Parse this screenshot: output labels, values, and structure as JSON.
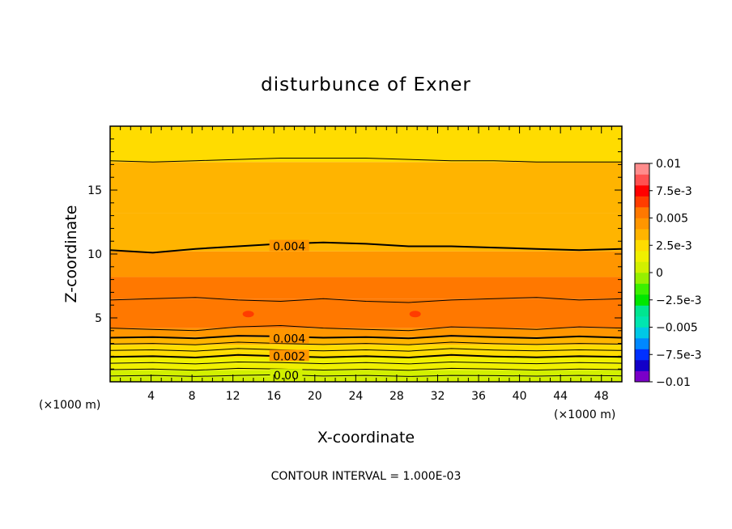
{
  "chart_data": {
    "type": "contour",
    "title": "disturbunce of Exner",
    "xlabel": "X-coordinate",
    "ylabel": "Z-coordinate",
    "x_unit": "(×1000 m)",
    "y_unit": "(×1000 m)",
    "xlim": [
      0,
      50
    ],
    "ylim": [
      0,
      20
    ],
    "x_ticks": [
      4,
      8,
      12,
      16,
      20,
      24,
      28,
      32,
      36,
      40,
      44,
      48
    ],
    "y_ticks": [
      5,
      10,
      15
    ],
    "contour_interval_text": "CONTOUR INTERVAL = 1.000E-03",
    "colorbar": {
      "range": [
        -0.01,
        0.01
      ],
      "labels": [
        {
          "value": 0.01,
          "text": "0.01"
        },
        {
          "value": 0.0075,
          "text": "7.5e-3"
        },
        {
          "value": 0.005,
          "text": "0.005"
        },
        {
          "value": 0.0025,
          "text": "2.5e-3"
        },
        {
          "value": 0,
          "text": "0"
        },
        {
          "value": -0.0025,
          "text": "−2.5e-3"
        },
        {
          "value": -0.005,
          "text": "−0.005"
        },
        {
          "value": -0.0075,
          "text": "−7.5e-3"
        },
        {
          "value": -0.01,
          "text": "−0.01"
        }
      ],
      "colors": [
        "#7a00c8",
        "#1200c8",
        "#0030ff",
        "#0088ff",
        "#00c8e6",
        "#00e6b0",
        "#00e690",
        "#00e600",
        "#3cf000",
        "#96f000",
        "#d2f000",
        "#f0f000",
        "#ffdc00",
        "#ffb400",
        "#ff9600",
        "#ff7800",
        "#ff3c00",
        "#ff0000",
        "#ff5050",
        "#ff8c8c"
      ]
    },
    "field_bands": [
      {
        "z0": 0.0,
        "z1": 0.4,
        "value": 0.0003
      },
      {
        "z0": 0.4,
        "z1": 0.9,
        "value": 0.0008
      },
      {
        "z0": 0.9,
        "z1": 1.4,
        "value": 0.0013
      },
      {
        "z0": 1.4,
        "z1": 1.9,
        "value": 0.0018
      },
      {
        "z0": 1.9,
        "z1": 2.4,
        "value": 0.0023
      },
      {
        "z0": 2.4,
        "z1": 2.9,
        "value": 0.0028
      },
      {
        "z0": 2.9,
        "z1": 3.5,
        "value": 0.0033
      },
      {
        "z0": 3.5,
        "z1": 4.2,
        "value": 0.0045
      },
      {
        "z0": 4.2,
        "z1": 6.5,
        "value": 0.0058
      },
      {
        "z0": 6.5,
        "z1": 8.2,
        "value": 0.0052
      },
      {
        "z0": 8.2,
        "z1": 10.2,
        "value": 0.0046
      },
      {
        "z0": 10.2,
        "z1": 13.2,
        "value": 0.0037
      },
      {
        "z0": 13.2,
        "z1": 17.2,
        "value": 0.0031
      },
      {
        "z0": 17.2,
        "z1": 20.0,
        "value": 0.0024
      }
    ],
    "contours": [
      {
        "value": 0.0005,
        "z": [
          0.45,
          0.5,
          0.42,
          0.5,
          0.55,
          0.45,
          0.5,
          0.42,
          0.5,
          0.48,
          0.44,
          0.5,
          0.46
        ]
      },
      {
        "value": 0.001,
        "z": [
          0.95,
          1.0,
          0.9,
          1.05,
          1.0,
          0.92,
          0.98,
          0.9,
          1.05,
          1.0,
          0.92,
          1.0,
          0.95
        ]
      },
      {
        "value": 0.0015,
        "z": [
          1.45,
          1.5,
          1.4,
          1.55,
          1.5,
          1.42,
          1.5,
          1.4,
          1.55,
          1.48,
          1.42,
          1.5,
          1.45
        ]
      },
      {
        "value": 0.002,
        "z": [
          1.95,
          2.0,
          1.9,
          2.1,
          2.0,
          1.92,
          2.0,
          1.9,
          2.1,
          1.98,
          1.92,
          2.0,
          1.95
        ]
      },
      {
        "value": 0.0025,
        "z": [
          2.45,
          2.5,
          2.4,
          2.6,
          2.5,
          2.42,
          2.5,
          2.4,
          2.6,
          2.48,
          2.42,
          2.5,
          2.45
        ]
      },
      {
        "value": 0.003,
        "z": [
          2.95,
          3.0,
          2.9,
          3.1,
          3.0,
          2.92,
          3.0,
          2.9,
          3.1,
          2.98,
          2.92,
          3.0,
          2.95
        ]
      },
      {
        "value": 0.004,
        "z": [
          3.45,
          3.5,
          3.4,
          3.6,
          3.55,
          3.45,
          3.5,
          3.4,
          3.6,
          3.5,
          3.42,
          3.55,
          3.45
        ]
      },
      {
        "value": 0.005,
        "z": [
          4.2,
          4.1,
          4.0,
          4.3,
          4.4,
          4.2,
          4.1,
          4.0,
          4.3,
          4.2,
          4.1,
          4.3,
          4.2
        ]
      },
      {
        "value": 0.005,
        "z": [
          6.4,
          6.5,
          6.6,
          6.4,
          6.3,
          6.5,
          6.3,
          6.2,
          6.4,
          6.5,
          6.6,
          6.4,
          6.5
        ]
      },
      {
        "value": 0.004,
        "z": [
          10.3,
          10.1,
          10.4,
          10.6,
          10.8,
          10.9,
          10.8,
          10.6,
          10.6,
          10.5,
          10.4,
          10.3,
          10.4
        ]
      },
      {
        "value": 0.003,
        "z": [
          17.3,
          17.2,
          17.3,
          17.4,
          17.5,
          17.5,
          17.5,
          17.4,
          17.3,
          17.3,
          17.2,
          17.2,
          17.2
        ]
      }
    ],
    "contour_labels": [
      {
        "text": "0.004",
        "x": 17.5,
        "z": 10.6
      },
      {
        "text": "0.004",
        "x": 17.5,
        "z": 3.4
      },
      {
        "text": "0.002",
        "x": 17.5,
        "z": 2.0
      },
      {
        "text": "0.00",
        "x": 17.2,
        "z": 0.5
      }
    ],
    "cells": [
      {
        "x": 13.5,
        "z": 5.3
      },
      {
        "x": 29.8,
        "z": 5.3
      }
    ]
  }
}
